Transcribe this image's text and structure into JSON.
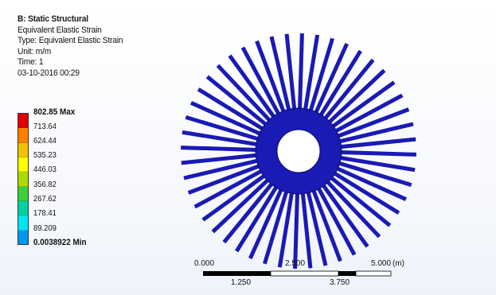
{
  "info": {
    "title": "B: Static Structural",
    "result": "Equivalent Elastic Strain",
    "type": "Type: Equivalent Elastic Strain",
    "unit": "Unit: m/m",
    "time": "Time: 1",
    "date": "03-10-2016 00:29"
  },
  "legend": {
    "labels": [
      "802.85 Max",
      "713.64",
      "624.44",
      "535.23",
      "446.03",
      "356.82",
      "267.62",
      "178.41",
      "89.209",
      "0.0038922 Min"
    ],
    "colors": [
      "#e00000",
      "#ff8000",
      "#f2c200",
      "#ffff00",
      "#aadc00",
      "#3cd03c",
      "#00d2a0",
      "#00e6f0",
      "#0096f0",
      "#0000d2"
    ]
  },
  "model": {
    "color": "#1a1ab4",
    "edge_color": "#0d0d66",
    "hole_color": "#ffffff",
    "fin_count": 48
  },
  "scale_bar": {
    "top_left": "0.000",
    "top_mid": "2.500",
    "top_right": "5.000",
    "unit": "(m)",
    "bottom_left": "1.250",
    "bottom_right": "3.750"
  }
}
